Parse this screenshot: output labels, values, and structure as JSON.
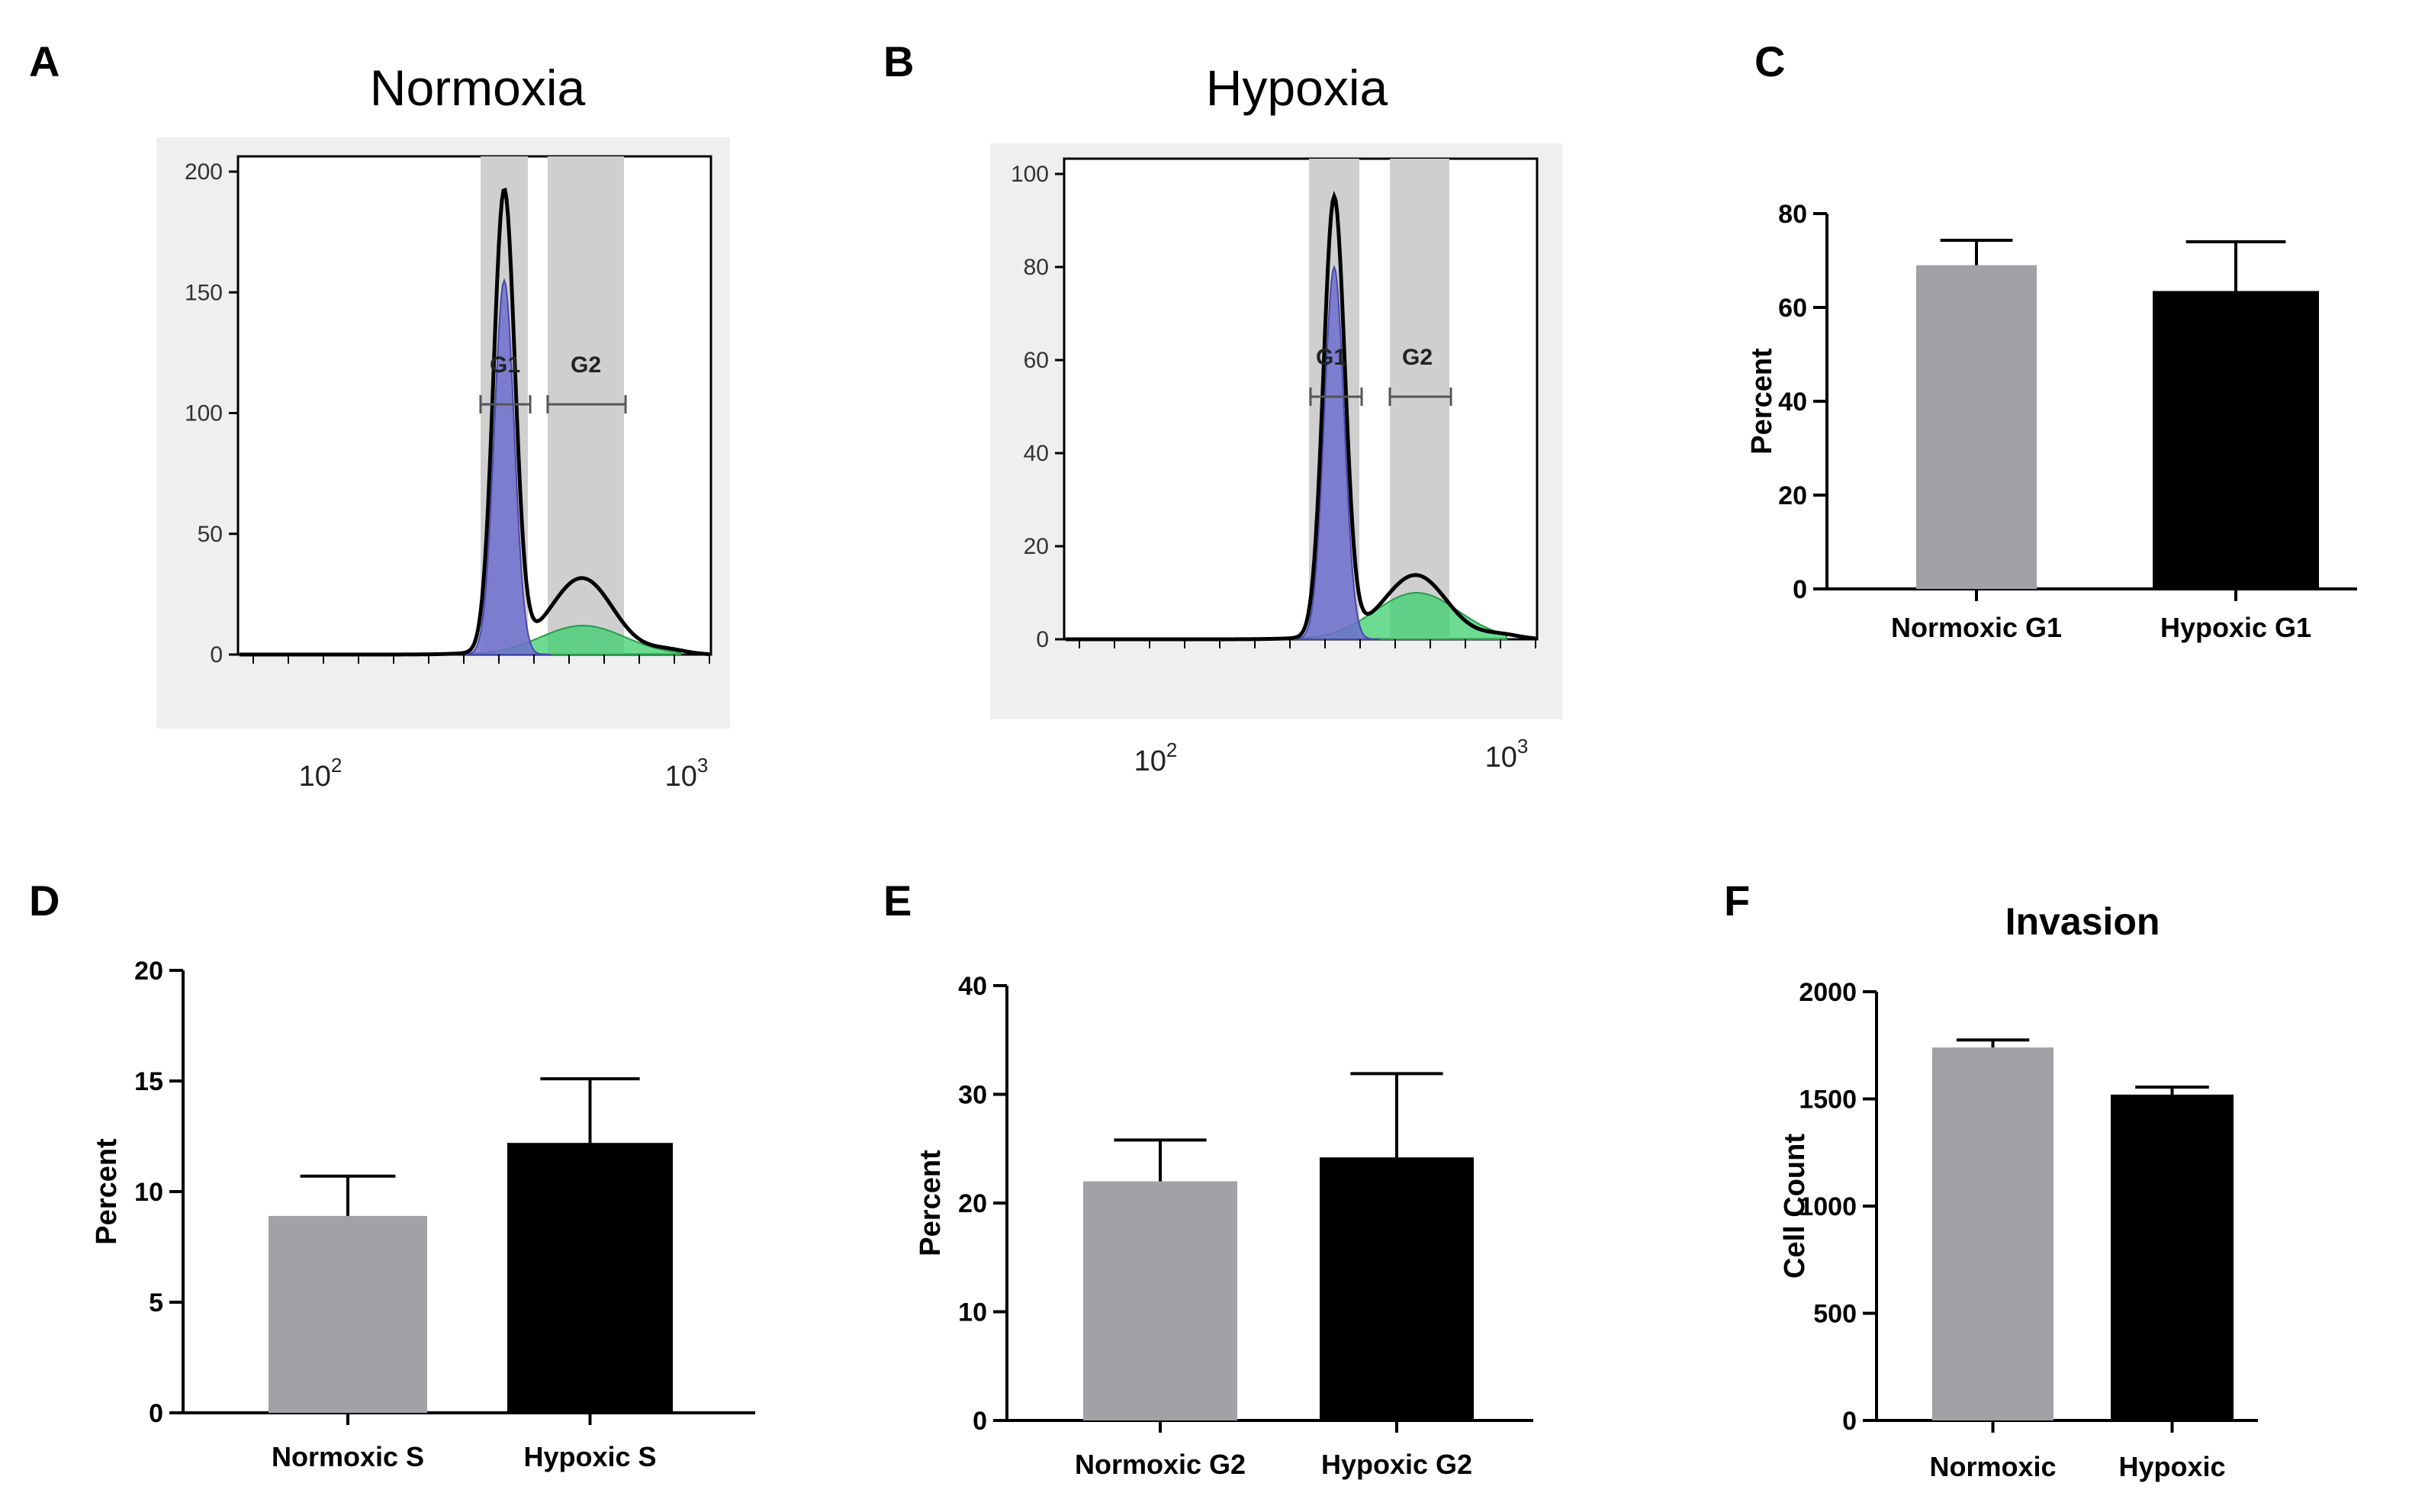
{
  "colors": {
    "normoxic": "#a2a1a6",
    "hypoxic": "#000000",
    "g1_fill": "#6f6fcf",
    "g2_fill": "#3ccf6e",
    "gate_band": "#cfcfcf",
    "hist_panel_bg": "#efefef"
  },
  "panels": {
    "A": "A",
    "B": "B",
    "C": "C",
    "D": "D",
    "E": "E",
    "F": "F"
  },
  "histograms": [
    {
      "panel": "A",
      "title": "Normoxia",
      "y_ticks": [
        "0",
        "50",
        "100",
        "150",
        "200"
      ],
      "y_max": 200,
      "peaks": {
        "g1_height": 190,
        "g1_fill_height": 155,
        "g2_height": 30,
        "g2_fill_height": 12
      },
      "x_decades": [
        {
          "base": "10",
          "exp": "2"
        },
        {
          "base": "10",
          "exp": "3"
        }
      ],
      "gates": [
        "G1",
        "G2"
      ]
    },
    {
      "panel": "B",
      "title": "Hypoxia",
      "y_ticks": [
        "0",
        "20",
        "40",
        "60",
        "80",
        "100"
      ],
      "y_max": 100,
      "peaks": {
        "g1_height": 94,
        "g1_fill_height": 80,
        "g2_height": 13,
        "g2_fill_height": 10
      },
      "x_decades": [
        {
          "base": "10",
          "exp": "2"
        },
        {
          "base": "10",
          "exp": "3"
        }
      ],
      "gates": [
        "G1",
        "G2"
      ]
    }
  ],
  "chart_data": [
    {
      "panel": "C",
      "type": "bar",
      "title": "",
      "categories": [
        "Normoxic G1",
        "Hypoxic G1"
      ],
      "values": [
        69,
        63.5
      ],
      "errors": [
        5.3,
        10.5
      ],
      "ylabel": "Percent",
      "ylim": [
        0,
        80
      ],
      "yticks": [
        0,
        20,
        40,
        60,
        80
      ]
    },
    {
      "panel": "D",
      "type": "bar",
      "title": "",
      "categories": [
        "Normoxic S",
        "Hypoxic S"
      ],
      "values": [
        8.9,
        12.2
      ],
      "errors": [
        1.8,
        2.9
      ],
      "ylabel": "Percent",
      "ylim": [
        0,
        20
      ],
      "yticks": [
        0,
        5,
        10,
        15,
        20
      ]
    },
    {
      "panel": "E",
      "type": "bar",
      "title": "",
      "categories": [
        "Normoxic G2",
        "Hypoxic G2"
      ],
      "values": [
        22,
        24.2
      ],
      "errors": [
        3.8,
        7.7
      ],
      "ylabel": "Percent",
      "ylim": [
        0,
        40
      ],
      "yticks": [
        0,
        10,
        20,
        30,
        40
      ]
    },
    {
      "panel": "F",
      "type": "bar",
      "title": "Invasion",
      "categories": [
        "Normoxic",
        "Hypoxic"
      ],
      "values": [
        1740,
        1520
      ],
      "errors": [
        35,
        35
      ],
      "ylabel": "Cell Count",
      "ylim": [
        0,
        2000
      ],
      "yticks": [
        0,
        500,
        1000,
        1500,
        2000
      ]
    }
  ]
}
